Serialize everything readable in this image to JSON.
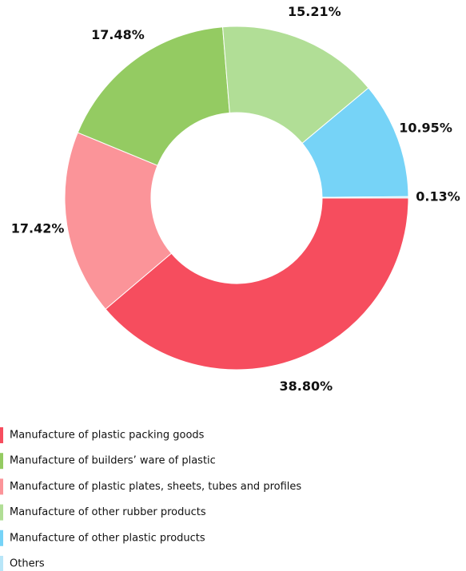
{
  "chart_data": {
    "type": "donut",
    "categories": [
      "Manufacture of plastic packing goods",
      "Manufacture of plastic plates, sheets, tubes and profiles",
      "Manufacture of builders’ ware of plastic",
      "Manufacture of other rubber products",
      "Manufacture of other plastic products",
      "Others"
    ],
    "values": [
      38.8,
      17.42,
      17.48,
      15.21,
      10.95,
      0.13
    ],
    "value_labels": [
      "38.80%",
      "17.42%",
      "17.48%",
      "15.21%",
      "10.95%",
      "0.13%"
    ],
    "colors": [
      "#f64d5e",
      "#fb9499",
      "#94cb62",
      "#b1de96",
      "#76d3f7",
      "#b8e6f8"
    ],
    "legend_order": [
      0,
      2,
      1,
      3,
      4,
      5
    ],
    "legend": "bottom-left"
  }
}
